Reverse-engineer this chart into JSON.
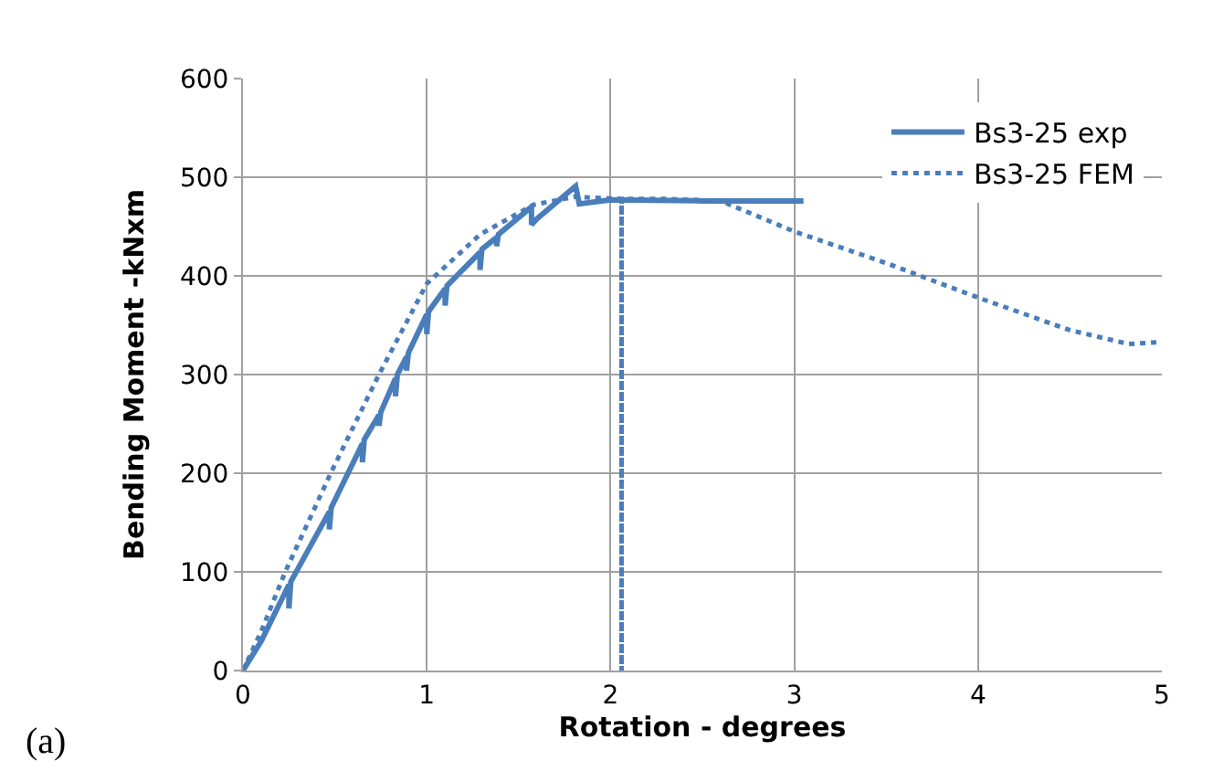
{
  "chart_data": {
    "type": "line",
    "xlabel": "Rotation - degrees",
    "ylabel": "Bending Moment -kNxm",
    "annotations": [
      "(a)"
    ],
    "xlim": [
      0,
      5
    ],
    "xticks": [
      0,
      1,
      2,
      3,
      4,
      5
    ],
    "ylim": [
      0,
      600
    ],
    "yticks": [
      0,
      100,
      200,
      300,
      400,
      500,
      600
    ],
    "grid": true,
    "legend": "top right",
    "marker": "none",
    "series": [
      {
        "name": "Bs3-25 exp",
        "color": "#4a7ebb",
        "line_style": "solid",
        "x": [
          0,
          0.1,
          0.25,
          0.25,
          0.26,
          0.47,
          0.47,
          0.48,
          0.65,
          0.65,
          0.66,
          0.74,
          0.74,
          0.75,
          0.83,
          0.83,
          0.84,
          0.89,
          0.89,
          0.9,
          1.0,
          1.0,
          1.01,
          1.1,
          1.1,
          1.11,
          1.29,
          1.29,
          1.3,
          1.38,
          1.38,
          1.39,
          1.57,
          1.57,
          1.6,
          1.81,
          1.83,
          2.0,
          2.5,
          3.05
        ],
        "values": [
          0,
          30,
          87,
          63,
          90,
          161,
          143,
          165,
          230,
          211,
          234,
          259,
          248,
          262,
          296,
          278,
          300,
          318,
          304,
          322,
          361,
          341,
          364,
          387,
          370,
          390,
          424,
          406,
          427,
          439,
          430,
          442,
          470,
          452,
          458,
          491,
          473,
          477,
          476,
          476
        ]
      },
      {
        "name": "Bs3-25 FEM",
        "color": "#4a7ebb",
        "line_style": "dotted",
        "x": [
          0,
          0.1,
          0.23,
          0.48,
          0.74,
          1.0,
          1.29,
          1.58,
          1.8,
          2.06,
          2.06,
          2.06,
          2.3,
          2.6,
          3.0,
          3.5,
          4.0,
          4.5,
          4.82,
          5.0
        ],
        "values": [
          0,
          40,
          100,
          201,
          300,
          392,
          442,
          472,
          480,
          478,
          0,
          478,
          478,
          476,
          445,
          413,
          378,
          345,
          331,
          333
        ]
      }
    ]
  }
}
